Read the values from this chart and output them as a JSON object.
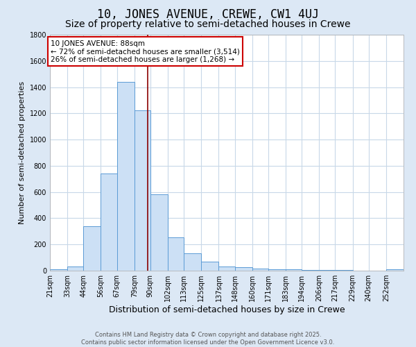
{
  "title": "10, JONES AVENUE, CREWE, CW1 4UJ",
  "subtitle": "Size of property relative to semi-detached houses in Crewe",
  "xlabel": "Distribution of semi-detached houses by size in Crewe",
  "ylabel": "Number of semi-detached properties",
  "bin_labels": [
    "21sqm",
    "33sqm",
    "44sqm",
    "56sqm",
    "67sqm",
    "79sqm",
    "90sqm",
    "102sqm",
    "113sqm",
    "125sqm",
    "137sqm",
    "148sqm",
    "160sqm",
    "171sqm",
    "183sqm",
    "194sqm",
    "206sqm",
    "217sqm",
    "229sqm",
    "240sqm",
    "252sqm"
  ],
  "bin_left_edges": [
    21,
    33,
    44,
    56,
    67,
    79,
    90,
    102,
    113,
    125,
    137,
    148,
    160,
    171,
    183,
    194,
    206,
    217,
    229,
    240,
    252
  ],
  "bin_widths": [
    12,
    11,
    12,
    11,
    12,
    11,
    12,
    11,
    12,
    12,
    11,
    12,
    11,
    12,
    11,
    12,
    11,
    12,
    11,
    12,
    12
  ],
  "bar_heights": [
    10,
    30,
    340,
    740,
    1440,
    1225,
    580,
    255,
    130,
    68,
    30,
    25,
    18,
    12,
    8,
    5,
    3,
    3,
    2,
    2,
    10
  ],
  "bar_color": "#cce0f5",
  "bar_edge_color": "#5b9bd5",
  "property_size": 88,
  "vline_color": "#8b0000",
  "annotation_text": "10 JONES AVENUE: 88sqm\n← 72% of semi-detached houses are smaller (3,514)\n26% of semi-detached houses are larger (1,268) →",
  "annotation_box_color": "#ffffff",
  "annotation_box_edge_color": "#cc0000",
  "ylim": [
    0,
    1800
  ],
  "yticks": [
    0,
    200,
    400,
    600,
    800,
    1000,
    1200,
    1400,
    1600,
    1800
  ],
  "fig_background_color": "#dce8f5",
  "plot_background_color": "#ffffff",
  "grid_color": "#c8d8e8",
  "footer_text": "Contains HM Land Registry data © Crown copyright and database right 2025.\nContains public sector information licensed under the Open Government Licence v3.0.",
  "title_fontsize": 12,
  "subtitle_fontsize": 10,
  "ylabel_fontsize": 8,
  "xlabel_fontsize": 9,
  "tick_fontsize": 7,
  "footer_fontsize": 6,
  "annotation_fontsize": 7.5
}
